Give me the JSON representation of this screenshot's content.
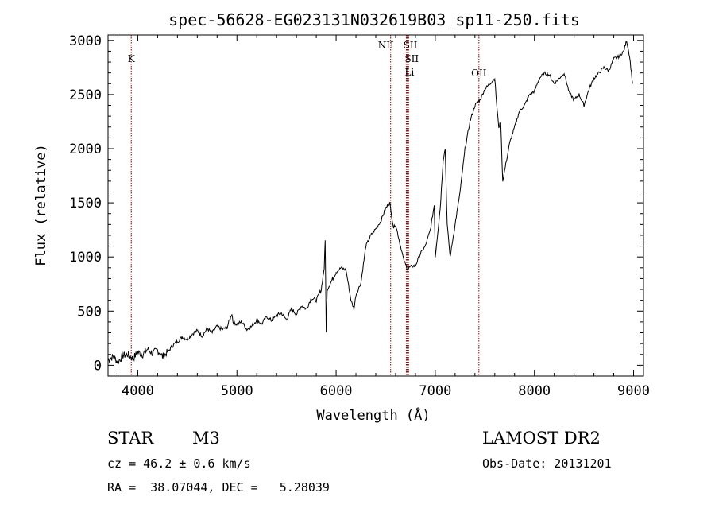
{
  "chart_data": {
    "type": "line",
    "title": "spec-56628-EG023131N032619B03_sp11-250.fits",
    "xlabel": "Wavelength (Å)",
    "ylabel": "Flux (relative)",
    "xlim": [
      3700,
      9100
    ],
    "ylim": [
      -100,
      3050
    ],
    "xticks": [
      4000,
      5000,
      6000,
      7000,
      8000,
      9000
    ],
    "yticks": [
      0,
      500,
      1000,
      1500,
      2000,
      2500,
      3000
    ],
    "grid": false,
    "series": [
      {
        "x": [
          3700,
          3750,
          3800,
          3850,
          3900,
          3950,
          4000,
          4050,
          4100,
          4150,
          4200,
          4250,
          4300,
          4350,
          4400,
          4450,
          4500,
          4550,
          4600,
          4650,
          4700,
          4750,
          4800,
          4850,
          4900,
          4950,
          4960,
          5000,
          5050,
          5100,
          5150,
          5200,
          5250,
          5300,
          5350,
          5400,
          5450,
          5500,
          5550,
          5600,
          5650,
          5700,
          5750,
          5800,
          5850,
          5880,
          5890,
          5900,
          5910,
          5950,
          6000,
          6050,
          6100,
          6150,
          6180,
          6200,
          6250,
          6300,
          6350,
          6400,
          6450,
          6500,
          6540,
          6560,
          6580,
          6600,
          6650,
          6680,
          6700,
          6720,
          6750,
          6800,
          6850,
          6900,
          6950,
          6990,
          7000,
          7050,
          7080,
          7100,
          7120,
          7140,
          7150,
          7200,
          7250,
          7300,
          7350,
          7400,
          7450,
          7500,
          7550,
          7600,
          7620,
          7640,
          7660,
          7680,
          7700,
          7750,
          7800,
          7850,
          7900,
          7950,
          8000,
          8050,
          8100,
          8150,
          8200,
          8250,
          8300,
          8350,
          8400,
          8450,
          8500,
          8550,
          8600,
          8650,
          8700,
          8750,
          8800,
          8850,
          8900,
          8930,
          8960,
          8990
        ],
        "y": [
          50,
          80,
          30,
          90,
          100,
          60,
          120,
          100,
          150,
          110,
          140,
          80,
          120,
          180,
          220,
          260,
          240,
          290,
          320,
          270,
          340,
          300,
          360,
          330,
          350,
          480,
          400,
          380,
          400,
          330,
          360,
          420,
          380,
          450,
          410,
          460,
          480,
          420,
          520,
          470,
          550,
          520,
          620,
          600,
          700,
          900,
          1150,
          300,
          700,
          770,
          860,
          900,
          880,
          600,
          520,
          650,
          760,
          1100,
          1200,
          1260,
          1330,
          1450,
          1500,
          1380,
          1270,
          1300,
          1100,
          980,
          930,
          890,
          910,
          920,
          1030,
          1100,
          1250,
          1480,
          1000,
          1450,
          1900,
          2000,
          1300,
          1100,
          1000,
          1300,
          1600,
          2000,
          2250,
          2400,
          2450,
          2550,
          2600,
          2650,
          2400,
          2200,
          2250,
          1700,
          1800,
          2050,
          2200,
          2350,
          2400,
          2500,
          2530,
          2650,
          2700,
          2680,
          2600,
          2650,
          2700,
          2520,
          2450,
          2500,
          2400,
          2550,
          2650,
          2700,
          2750,
          2720,
          2830,
          2850,
          2900,
          3000,
          2850,
          2600
        ]
      }
    ],
    "lines": [
      {
        "x": 3934,
        "label": "K"
      },
      {
        "x": 6550,
        "label": "NII"
      },
      {
        "x": 6717,
        "label": "SII"
      },
      {
        "x": 6731,
        "label": "SII"
      },
      {
        "x": 6708,
        "label": "Li"
      },
      {
        "x": 7440,
        "label": "OII"
      }
    ]
  },
  "footer": {
    "class_label": "STAR",
    "subclass": "M3",
    "cz": "cz = 46.2 ± 0.6 km/s",
    "radec": "RA =  38.07044, DEC =   5.28039",
    "survey": "LAMOST DR2",
    "obs_date": "Obs-Date: 20131201"
  }
}
